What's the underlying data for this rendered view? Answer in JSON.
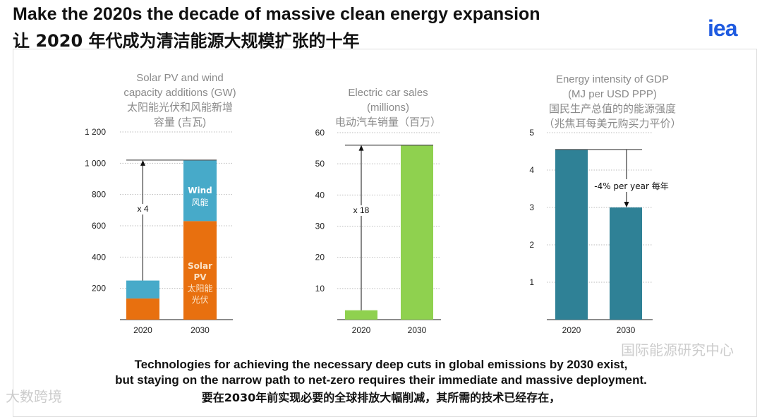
{
  "header": {
    "title_en": "Make the 2020s the decade of massive clean energy expansion",
    "title_zh": "让 2020 年代成为清洁能源大规模扩张的十年",
    "logo": "iea"
  },
  "chart_data": [
    {
      "type": "bar",
      "stacked": true,
      "title": [
        "Solar PV and wind",
        "capacity additions (GW)",
        "太阳能光伏和风能新增",
        "容量 (吉瓦)"
      ],
      "categories": [
        "2020",
        "2030"
      ],
      "series": [
        {
          "name": "Solar PV 太阳能光伏",
          "label": [
            "Solar",
            "PV",
            "太阳能",
            "光伏"
          ],
          "color": "#e8700f",
          "values": [
            135,
            630
          ]
        },
        {
          "name": "Wind 风能",
          "label": [
            "Wind",
            "风能"
          ],
          "color": "#47aac9",
          "values": [
            115,
            390
          ]
        }
      ],
      "yticks": [
        200,
        400,
        600,
        800,
        1000,
        1200
      ],
      "ytick_labels": [
        "200",
        "400",
        "600",
        "800",
        "1 000",
        "1 200"
      ],
      "ylim": [
        0,
        1200
      ],
      "annotation": "x 4"
    },
    {
      "type": "bar",
      "title": [
        "Electric car sales",
        "(millions)",
        "电动汽车销量（百万）"
      ],
      "categories": [
        "2020",
        "2030"
      ],
      "series": [
        {
          "name": "Electric car sales",
          "color": "#8fd14f",
          "values": [
            3,
            56
          ]
        }
      ],
      "yticks": [
        10,
        20,
        30,
        40,
        50,
        60
      ],
      "ytick_labels": [
        "10",
        "20",
        "30",
        "40",
        "50",
        "60"
      ],
      "ylim": [
        0,
        60
      ],
      "annotation": "x 18"
    },
    {
      "type": "bar",
      "title": [
        "Energy intensity of GDP",
        "(MJ per USD PPP)",
        "国民生产总值的的能源强度",
        "（兆焦耳每美元购买力平价）"
      ],
      "categories": [
        "2020",
        "2030"
      ],
      "series": [
        {
          "name": "Energy intensity",
          "color": "#2f8196",
          "values": [
            4.55,
            3.0
          ]
        }
      ],
      "yticks": [
        1,
        2,
        3,
        4,
        5
      ],
      "ytick_labels": [
        "1",
        "2",
        "3",
        "4",
        "5"
      ],
      "ylim": [
        0,
        5
      ],
      "annotation": "-4% per year 每年"
    }
  ],
  "footer": {
    "line1": "Technologies for achieving the necessary deep cuts in global emissions by 2030 exist,",
    "line2": "but staying on the narrow path to net-zero requires their immediate and massive deployment.",
    "line3": "要在2030年前实现必要的全球排放大幅削减，其所需的技术已经存在，"
  },
  "watermarks": {
    "left": "大数跨境",
    "right": "国际能源研究中心"
  }
}
